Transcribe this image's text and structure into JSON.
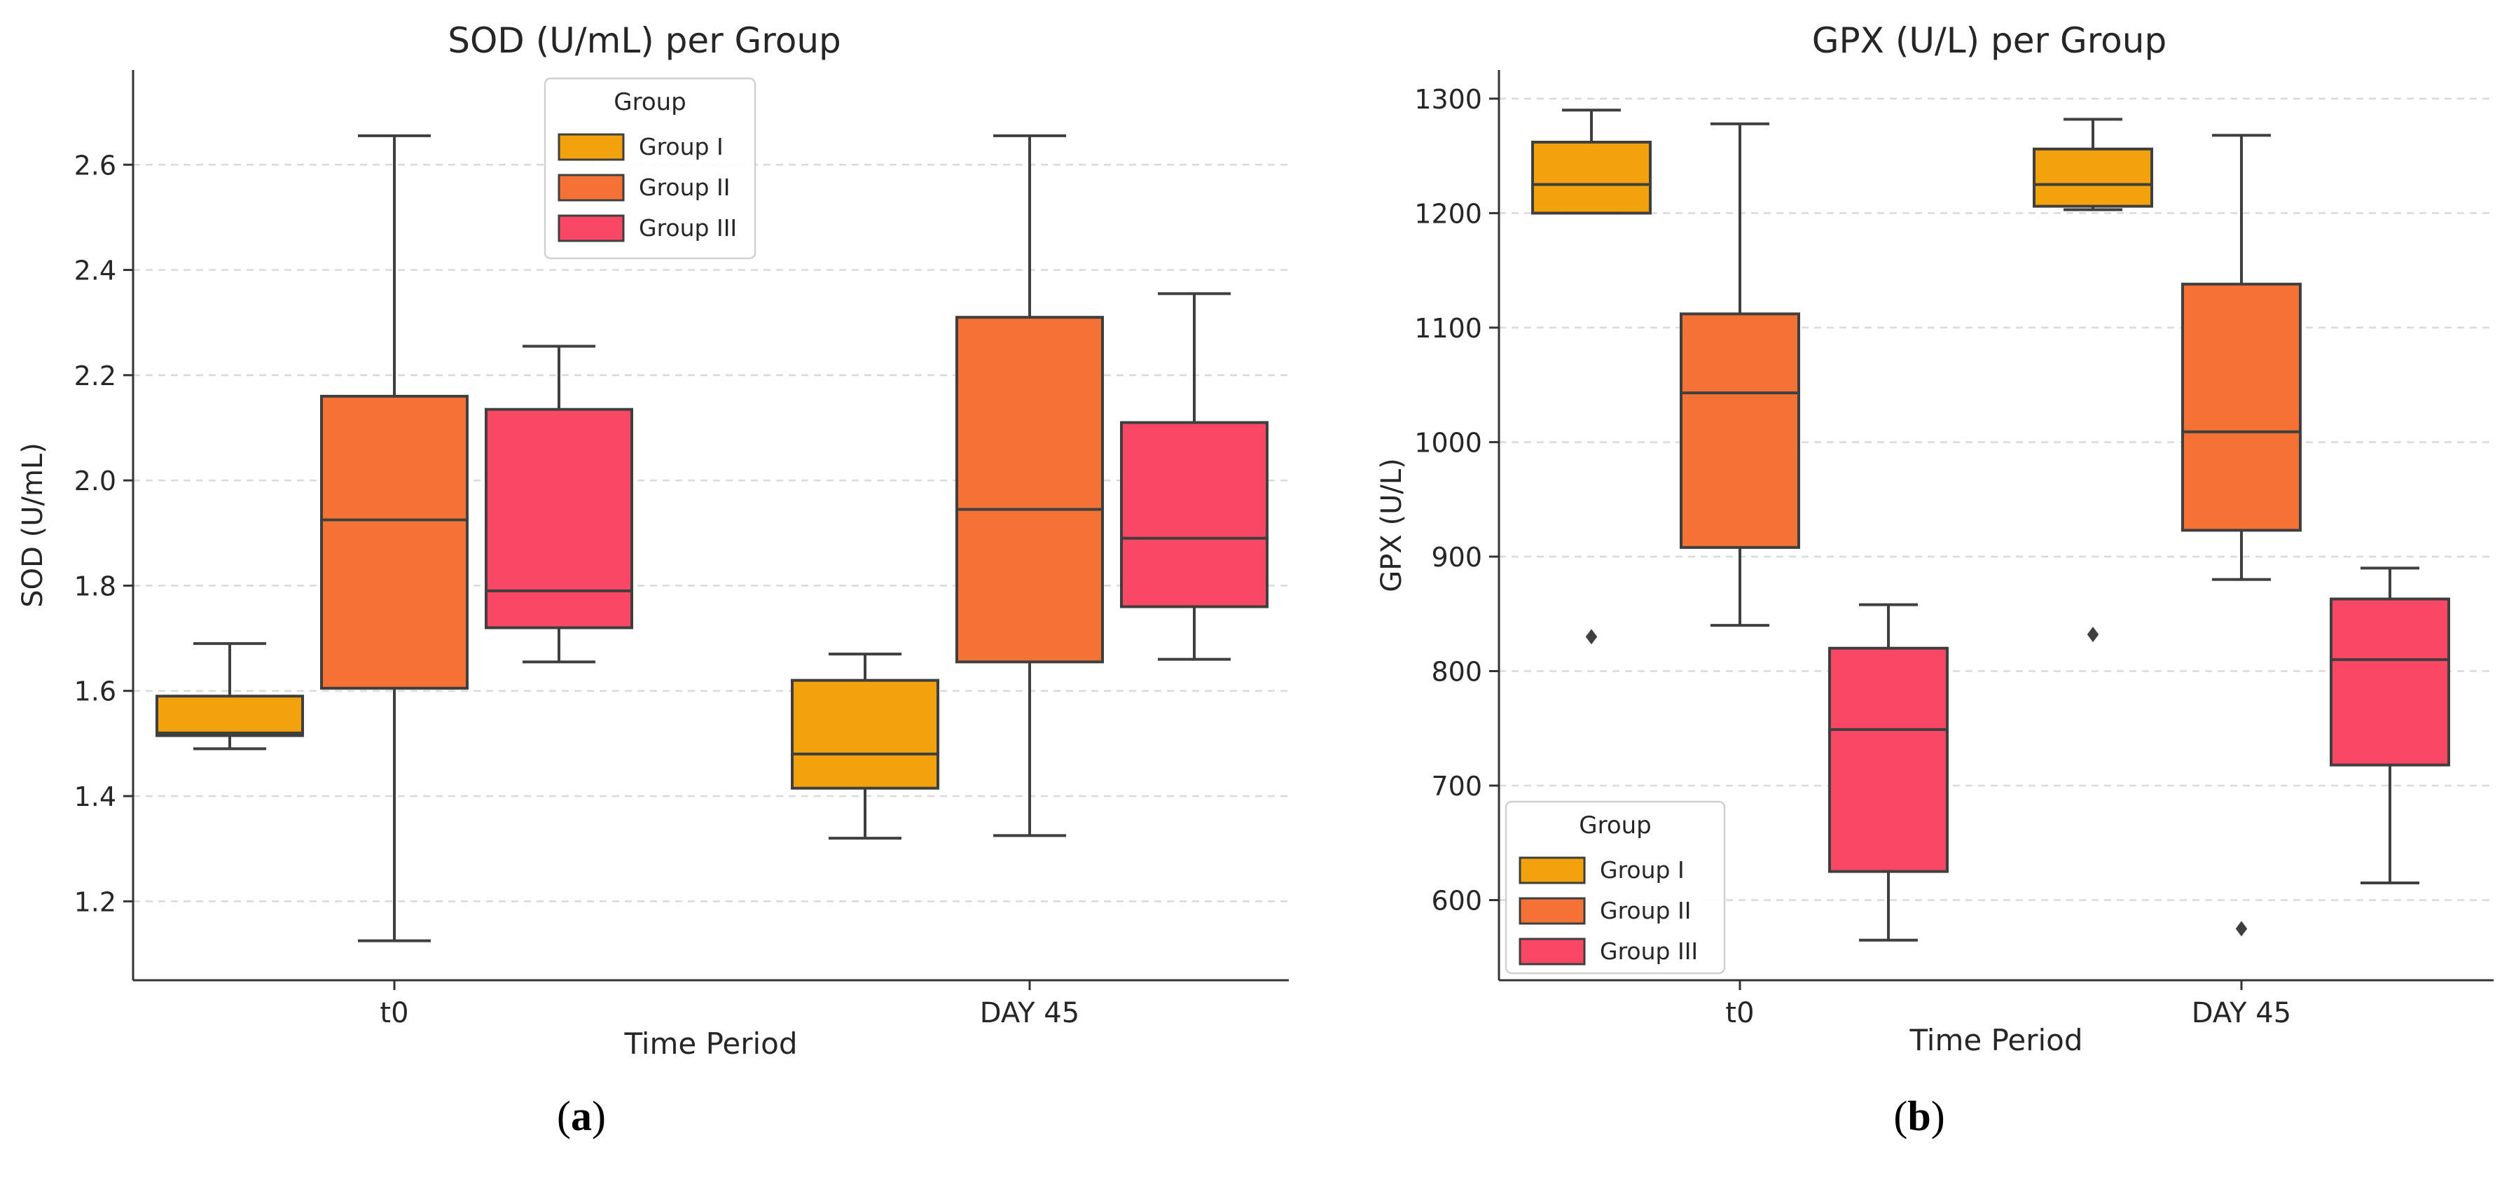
{
  "chart_data": [
    {
      "type": "box",
      "title": "SOD (U/mL) per Group",
      "xlabel": "Time Period",
      "ylabel": "SOD (U/mL)",
      "ylim": [
        1.05,
        2.78
      ],
      "yticks": [
        1.2,
        1.4,
        1.6,
        1.8,
        2.0,
        2.2,
        2.4,
        2.6
      ],
      "ytick_labels": [
        "1.2",
        "1.4",
        "1.6",
        "1.8",
        "2.0",
        "2.2",
        "2.4",
        "2.6"
      ],
      "grid": "y-dashed",
      "categories": [
        "t0",
        "DAY 45"
      ],
      "legend": {
        "title": "Group",
        "placement": "top-center",
        "entries": [
          "Group I",
          "Group II",
          "Group III"
        ]
      },
      "series": [
        {
          "name": "Group I",
          "color": "#F2A20A",
          "boxes": [
            {
              "min": 1.49,
              "q1": 1.515,
              "median": 1.52,
              "q3": 1.59,
              "max": 1.69,
              "outliers": []
            },
            {
              "min": 1.32,
              "q1": 1.415,
              "median": 1.48,
              "q3": 1.62,
              "max": 1.67,
              "outliers": []
            }
          ]
        },
        {
          "name": "Group II",
          "color": "#F37234",
          "boxes": [
            {
              "min": 1.125,
              "q1": 1.605,
              "median": 1.925,
              "q3": 2.16,
              "max": 2.655,
              "outliers": []
            },
            {
              "min": 1.325,
              "q1": 1.655,
              "median": 1.945,
              "q3": 2.31,
              "max": 2.655,
              "outliers": []
            }
          ]
        },
        {
          "name": "Group III",
          "color": "#FA4766",
          "boxes": [
            {
              "min": 1.655,
              "q1": 1.72,
              "median": 1.79,
              "q3": 2.135,
              "max": 2.255,
              "outliers": []
            },
            {
              "min": 1.66,
              "q1": 1.76,
              "median": 1.89,
              "q3": 2.11,
              "max": 2.355,
              "outliers": []
            }
          ]
        }
      ]
    },
    {
      "type": "box",
      "title": "GPX (U/L) per Group",
      "xlabel": "Time Period",
      "ylabel": "GPX (U/L)",
      "ylim": [
        530,
        1325
      ],
      "yticks": [
        600,
        700,
        800,
        900,
        1000,
        1100,
        1200,
        1300
      ],
      "ytick_labels": [
        "600",
        "700",
        "800",
        "900",
        "1000",
        "1100",
        "1200",
        "1300"
      ],
      "grid": "y-dashed",
      "categories": [
        "t0",
        "DAY 45"
      ],
      "legend": {
        "title": "Group",
        "placement": "bottom-left",
        "entries": [
          "Group I",
          "Group II",
          "Group III"
        ]
      },
      "series": [
        {
          "name": "Group I",
          "color": "#F2A20A",
          "boxes": [
            {
              "min": 1200,
              "q1": 1200,
              "median": 1225,
              "q3": 1262,
              "max": 1290,
              "outliers": [
                830
              ]
            },
            {
              "min": 1203,
              "q1": 1206,
              "median": 1225,
              "q3": 1256,
              "max": 1282,
              "outliers": [
                832
              ]
            }
          ]
        },
        {
          "name": "Group II",
          "color": "#F37234",
          "boxes": [
            {
              "min": 840,
              "q1": 908,
              "median": 1043,
              "q3": 1112,
              "max": 1278,
              "outliers": []
            },
            {
              "min": 880,
              "q1": 923,
              "median": 1009,
              "q3": 1138,
              "max": 1268,
              "outliers": [
                575
              ]
            }
          ]
        },
        {
          "name": "Group III",
          "color": "#FA4766",
          "boxes": [
            {
              "min": 565,
              "q1": 625,
              "median": 749,
              "q3": 820,
              "max": 858,
              "outliers": []
            },
            {
              "min": 615,
              "q1": 718,
              "median": 810,
              "q3": 863,
              "max": 890,
              "outliers": []
            }
          ]
        }
      ]
    }
  ],
  "panel_labels": {
    "a": "a",
    "b": "b"
  }
}
